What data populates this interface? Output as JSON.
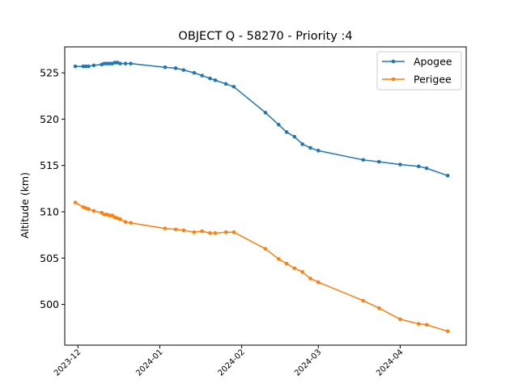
{
  "chart_data": {
    "type": "line",
    "title": "OBJECT Q - 58270 - Priority :4",
    "xlabel": "",
    "ylabel": "Altitude (km)",
    "x_type": "date",
    "xlim": [
      "2023-11-26",
      "2024-04-26"
    ],
    "ylim": [
      495.6,
      527.8
    ],
    "x_ticks": [
      "2023-12-01",
      "2024-01-01",
      "2024-02-01",
      "2024-03-01",
      "2024-04-01"
    ],
    "x_tick_labels": [
      "2023-12",
      "2024-01",
      "2024-02",
      "2024-03",
      "2024-04"
    ],
    "y_ticks": [
      500,
      505,
      510,
      515,
      520,
      525
    ],
    "y_tick_labels": [
      "500",
      "505",
      "510",
      "515",
      "520",
      "525"
    ],
    "grid": false,
    "legend": "top-right",
    "series": [
      {
        "name": "Apogee",
        "color": "#1f77b4",
        "x": [
          "2023-11-30",
          "2023-12-03",
          "2023-12-04",
          "2023-12-05",
          "2023-12-07",
          "2023-12-10",
          "2023-12-11",
          "2023-12-12",
          "2023-12-13",
          "2023-12-14",
          "2023-12-15",
          "2023-12-16",
          "2023-12-17",
          "2023-12-19",
          "2023-12-21",
          "2024-01-03",
          "2024-01-07",
          "2024-01-10",
          "2024-01-14",
          "2024-01-17",
          "2024-01-20",
          "2024-01-22",
          "2024-01-26",
          "2024-01-29",
          "2024-02-10",
          "2024-02-15",
          "2024-02-18",
          "2024-02-21",
          "2024-02-24",
          "2024-02-27",
          "2024-03-01",
          "2024-03-18",
          "2024-03-24",
          "2024-04-01",
          "2024-04-08",
          "2024-04-11",
          "2024-04-19"
        ],
        "y": [
          525.7,
          525.7,
          525.7,
          525.7,
          525.8,
          525.9,
          526.0,
          526.0,
          526.0,
          526.0,
          526.1,
          526.1,
          526.0,
          526.0,
          526.0,
          525.6,
          525.5,
          525.3,
          525.0,
          524.7,
          524.4,
          524.2,
          523.8,
          523.5,
          520.7,
          519.4,
          518.6,
          518.1,
          517.3,
          516.9,
          516.6,
          515.6,
          515.4,
          515.1,
          514.9,
          514.7,
          513.9
        ]
      },
      {
        "name": "Perigee",
        "color": "#ff7f0e",
        "x": [
          "2023-11-30",
          "2023-12-03",
          "2023-12-04",
          "2023-12-05",
          "2023-12-07",
          "2023-12-10",
          "2023-12-11",
          "2023-12-12",
          "2023-12-13",
          "2023-12-14",
          "2023-12-15",
          "2023-12-16",
          "2023-12-17",
          "2023-12-19",
          "2023-12-21",
          "2024-01-03",
          "2024-01-07",
          "2024-01-10",
          "2024-01-14",
          "2024-01-17",
          "2024-01-20",
          "2024-01-22",
          "2024-01-26",
          "2024-01-29",
          "2024-02-10",
          "2024-02-15",
          "2024-02-18",
          "2024-02-21",
          "2024-02-24",
          "2024-02-27",
          "2024-03-01",
          "2024-03-18",
          "2024-03-24",
          "2024-04-01",
          "2024-04-08",
          "2024-04-11",
          "2024-04-19"
        ],
        "y": [
          511.0,
          510.5,
          510.4,
          510.3,
          510.1,
          509.9,
          509.7,
          509.7,
          509.6,
          509.6,
          509.4,
          509.3,
          509.2,
          508.9,
          508.8,
          508.2,
          508.1,
          508.0,
          507.8,
          507.9,
          507.7,
          507.7,
          507.8,
          507.8,
          506.0,
          504.9,
          504.4,
          503.9,
          503.5,
          502.8,
          502.4,
          500.4,
          499.6,
          498.4,
          497.9,
          497.8,
          497.1
        ]
      }
    ]
  }
}
